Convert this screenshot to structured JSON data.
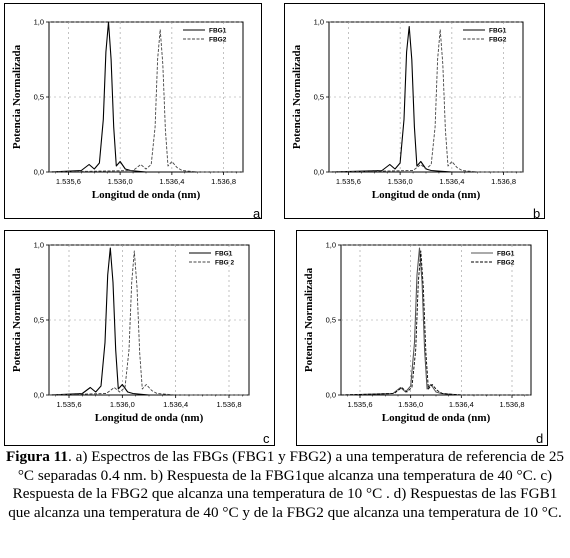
{
  "figure": {
    "caption": {
      "label": "Figura 11",
      "text": ". a) Espectros de las FBGs (FBG1 y FBG2) a una temperatura de referencia de 25 °C separadas 0.4 nm. b) Respuesta de la FBG1que alcanza una temperatura de 40 °C. c) Respuesta de la FBG2 que alcanza una temperatura de 10 °C . d) Respuestas de las FGB1 que alcanza  una temperatura de 40 °C y de la FBG2 que alcanza una temperatura de 10 °C."
    }
  },
  "chart_data": [
    {
      "panel": "a",
      "type": "line",
      "xlabel": "Longitud de onda  (nm)",
      "ylabel": "Potencia Normalizada",
      "xlim": [
        1535.45,
        1536.95
      ],
      "ylim": [
        0,
        1.0
      ],
      "xticks": [
        "1.535,6",
        "1.536,0",
        "1.536,4",
        "1.536,8"
      ],
      "yticks": [
        "0,0",
        "0,5",
        "1,0"
      ],
      "legend_position": "top-right",
      "series": [
        {
          "name": "FBG1",
          "style": "solid",
          "color": "#000000",
          "x": [
            1535.45,
            1535.7,
            1535.76,
            1535.8,
            1535.84,
            1535.87,
            1535.89,
            1535.91,
            1535.93,
            1535.95,
            1535.97,
            1536.0,
            1536.04,
            1536.08,
            1536.2,
            1536.95
          ],
          "y": [
            0.0,
            0.01,
            0.05,
            0.02,
            0.06,
            0.35,
            0.8,
            1.0,
            0.75,
            0.3,
            0.04,
            0.07,
            0.02,
            0.01,
            0.0,
            0.0
          ]
        },
        {
          "name": "FBG2",
          "style": "dashed",
          "color": "#444444",
          "x": [
            1535.45,
            1536.1,
            1536.16,
            1536.2,
            1536.24,
            1536.27,
            1536.29,
            1536.31,
            1536.33,
            1536.35,
            1536.37,
            1536.4,
            1536.44,
            1536.48,
            1536.6,
            1536.95
          ],
          "y": [
            0.0,
            0.01,
            0.05,
            0.02,
            0.05,
            0.3,
            0.75,
            0.95,
            0.72,
            0.28,
            0.04,
            0.07,
            0.03,
            0.01,
            0.0,
            0.0
          ]
        }
      ]
    },
    {
      "panel": "b",
      "type": "line",
      "xlabel": "Longitud de onda  (nm)",
      "ylabel": "Potencia Normalizada",
      "xlim": [
        1535.45,
        1536.95
      ],
      "ylim": [
        0,
        1.0
      ],
      "xticks": [
        "1.535,6",
        "1.536,0",
        "1.536,4",
        "1.536,8"
      ],
      "yticks": [
        "0,0",
        "0,5",
        "1,0"
      ],
      "legend_position": "top-right",
      "series": [
        {
          "name": "FBG1",
          "style": "solid",
          "color": "#000000",
          "x": [
            1535.45,
            1535.86,
            1535.92,
            1535.96,
            1536.0,
            1536.03,
            1536.05,
            1536.07,
            1536.09,
            1536.11,
            1536.13,
            1536.16,
            1536.2,
            1536.24,
            1536.4,
            1536.95
          ],
          "y": [
            0.0,
            0.01,
            0.05,
            0.02,
            0.06,
            0.35,
            0.8,
            0.97,
            0.75,
            0.3,
            0.04,
            0.07,
            0.02,
            0.01,
            0.0,
            0.0
          ]
        },
        {
          "name": "FBG2",
          "style": "dashed",
          "color": "#444444",
          "x": [
            1535.45,
            1536.1,
            1536.16,
            1536.2,
            1536.24,
            1536.27,
            1536.29,
            1536.31,
            1536.33,
            1536.35,
            1536.37,
            1536.4,
            1536.44,
            1536.48,
            1536.6,
            1536.95
          ],
          "y": [
            0.0,
            0.01,
            0.05,
            0.02,
            0.05,
            0.3,
            0.75,
            0.95,
            0.72,
            0.28,
            0.04,
            0.07,
            0.03,
            0.01,
            0.0,
            0.0
          ]
        }
      ]
    },
    {
      "panel": "c",
      "type": "line",
      "xlabel": "Longitud de onda  (nm)",
      "ylabel": "Potencia Normalizada",
      "xlim": [
        1535.45,
        1536.95
      ],
      "ylim": [
        0,
        1.0
      ],
      "xticks": [
        "1.535,6",
        "1.536,0",
        "1.536,4",
        "1.536,8"
      ],
      "yticks": [
        "0,0",
        "0,5",
        "1,0"
      ],
      "legend_position": "top-right",
      "series": [
        {
          "name": "FBG1",
          "style": "solid",
          "color": "#000000",
          "x": [
            1535.45,
            1535.7,
            1535.76,
            1535.8,
            1535.84,
            1535.87,
            1535.89,
            1535.91,
            1535.93,
            1535.95,
            1535.97,
            1536.0,
            1536.04,
            1536.08,
            1536.2,
            1536.95
          ],
          "y": [
            0.0,
            0.01,
            0.05,
            0.02,
            0.06,
            0.35,
            0.8,
            0.98,
            0.75,
            0.3,
            0.04,
            0.07,
            0.02,
            0.01,
            0.0,
            0.0
          ]
        },
        {
          "name": "FBG 2",
          "style": "dashed",
          "color": "#444444",
          "x": [
            1535.45,
            1535.88,
            1535.94,
            1535.98,
            1536.02,
            1536.05,
            1536.07,
            1536.09,
            1536.11,
            1536.13,
            1536.15,
            1536.18,
            1536.22,
            1536.26,
            1536.4,
            1536.95
          ],
          "y": [
            0.0,
            0.01,
            0.05,
            0.02,
            0.05,
            0.3,
            0.75,
            0.96,
            0.72,
            0.28,
            0.04,
            0.07,
            0.03,
            0.01,
            0.0,
            0.0
          ]
        }
      ]
    },
    {
      "panel": "d",
      "type": "line",
      "xlabel": "Longitud de onda  (nm)",
      "ylabel": "Potencia Normalizada",
      "xlim": [
        1535.45,
        1536.95
      ],
      "ylim": [
        0,
        1.0
      ],
      "xticks": [
        "1.535,6",
        "1.536,0",
        "1.536,4",
        "1.536,8"
      ],
      "yticks": [
        "0,0",
        "0,5",
        "1,0"
      ],
      "legend_position": "top-right",
      "series": [
        {
          "name": "FBG1",
          "style": "solid",
          "color": "#555555",
          "x": [
            1535.45,
            1535.86,
            1535.92,
            1535.96,
            1536.0,
            1536.03,
            1536.05,
            1536.07,
            1536.09,
            1536.11,
            1536.13,
            1536.16,
            1536.2,
            1536.24,
            1536.4,
            1536.95
          ],
          "y": [
            0.0,
            0.01,
            0.05,
            0.02,
            0.06,
            0.35,
            0.8,
            0.98,
            0.75,
            0.3,
            0.04,
            0.07,
            0.02,
            0.01,
            0.0,
            0.0
          ]
        },
        {
          "name": "FBG2",
          "style": "dashed",
          "color": "#000000",
          "x": [
            1535.45,
            1535.87,
            1535.93,
            1535.97,
            1536.01,
            1536.04,
            1536.06,
            1536.08,
            1536.1,
            1536.12,
            1536.14,
            1536.17,
            1536.21,
            1536.25,
            1536.4,
            1536.95
          ],
          "y": [
            0.0,
            0.01,
            0.05,
            0.02,
            0.05,
            0.3,
            0.75,
            0.96,
            0.72,
            0.28,
            0.04,
            0.07,
            0.03,
            0.01,
            0.0,
            0.0
          ]
        }
      ]
    }
  ]
}
